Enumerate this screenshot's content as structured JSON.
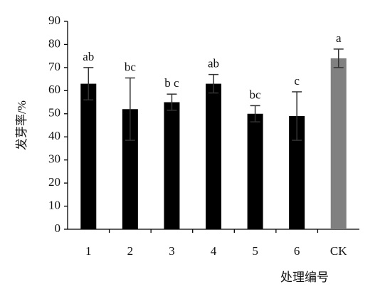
{
  "chart_data": {
    "type": "bar",
    "x_label": "处理编号",
    "y_label": "发芽率/%",
    "categories": [
      "1",
      "2",
      "3",
      "4",
      "5",
      "6",
      "CK"
    ],
    "series": [
      {
        "values": [
          63,
          52,
          55,
          63,
          50,
          49,
          74
        ],
        "errors": [
          7,
          13.5,
          3.5,
          4,
          3.5,
          10.5,
          4
        ],
        "colors": [
          "#000000",
          "#000000",
          "#000000",
          "#000000",
          "#000000",
          "#000000",
          "#808080"
        ],
        "labels": [
          "ab",
          "bc",
          "b c",
          "ab",
          "bc",
          "c",
          "a"
        ]
      }
    ],
    "ylim": [
      0,
      90
    ],
    "yticks": [
      0,
      10,
      20,
      30,
      40,
      50,
      60,
      70,
      80,
      90
    ],
    "grid": false
  }
}
